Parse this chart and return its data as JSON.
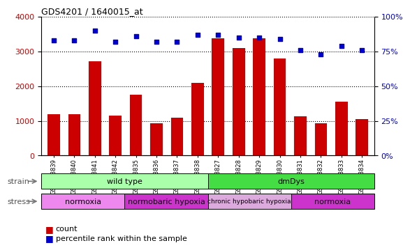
{
  "title": "GDS4201 / 1640015_at",
  "samples": [
    "GSM398839",
    "GSM398840",
    "GSM398841",
    "GSM398842",
    "GSM398835",
    "GSM398836",
    "GSM398837",
    "GSM398838",
    "GSM398827",
    "GSM398828",
    "GSM398829",
    "GSM398830",
    "GSM398831",
    "GSM398832",
    "GSM398833",
    "GSM398834"
  ],
  "counts": [
    1200,
    1200,
    2720,
    1150,
    1760,
    930,
    1090,
    2100,
    3380,
    3100,
    3380,
    2800,
    1130,
    940,
    1560,
    1050
  ],
  "percentiles": [
    83,
    83,
    90,
    82,
    86,
    82,
    82,
    87,
    87,
    85,
    85,
    84,
    76,
    73,
    79,
    76
  ],
  "ylim_left": [
    0,
    4000
  ],
  "ylim_right": [
    0,
    100
  ],
  "yticks_left": [
    0,
    1000,
    2000,
    3000,
    4000
  ],
  "yticks_right": [
    0,
    25,
    50,
    75,
    100
  ],
  "bar_color": "#cc0000",
  "scatter_color": "#0000cc",
  "strain_groups": [
    {
      "label": "wild type",
      "start": 0,
      "end": 8,
      "color": "#aaffaa"
    },
    {
      "label": "dmDys",
      "start": 8,
      "end": 16,
      "color": "#44dd44"
    }
  ],
  "stress_colors": [
    "#ee88ee",
    "#cc33cc",
    "#ddaadd",
    "#cc33cc"
  ],
  "stress_groups": [
    {
      "label": "normoxia",
      "start": 0,
      "end": 4
    },
    {
      "label": "normobaric hypoxia",
      "start": 4,
      "end": 8
    },
    {
      "label": "chronic hypobaric hypoxia",
      "start": 8,
      "end": 12
    },
    {
      "label": "normoxia",
      "start": 12,
      "end": 16
    }
  ],
  "background_color": "#ffffff",
  "tick_label_color_left": "#cc0000",
  "tick_label_color_right": "#0000cc",
  "grid_color": "#000000"
}
